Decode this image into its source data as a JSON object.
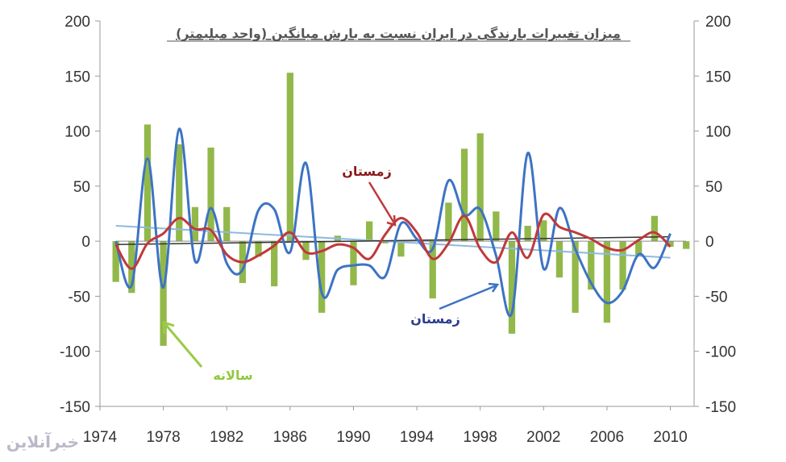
{
  "chart_data": {
    "type": "bar",
    "title": "میزان تغییرات بارندگی در ایران نسبت به بارش میانگین (واحد میلیمتر)",
    "xlabel": "",
    "ylabel": "",
    "ylim": [
      -150,
      200
    ],
    "yticks": [
      "200",
      "150",
      "100",
      "50",
      "0",
      "-50",
      "-100",
      "-150"
    ],
    "ytick_values": [
      200,
      150,
      100,
      50,
      0,
      -50,
      -100,
      -150
    ],
    "xticks": [
      "1974",
      "1978",
      "1982",
      "1986",
      "1990",
      "1994",
      "1998",
      "2002",
      "2006",
      "2010"
    ],
    "xtick_values": [
      1974,
      1978,
      1982,
      1986,
      1990,
      1994,
      1998,
      2002,
      2006,
      2010
    ],
    "xlim": [
      1974,
      2011.5
    ],
    "grid": false,
    "dual_y_axis": true,
    "colors": {
      "bars": "#92b84a",
      "annual_line": "#3d73c4",
      "winter_line": "#c0393b",
      "trend_annual": "#8db9e0",
      "trend_winter": "#333333"
    },
    "series": [
      {
        "name": "سالانه",
        "type": "bar",
        "x": [
          1975,
          1976,
          1977,
          1978,
          1979,
          1980,
          1981,
          1982,
          1983,
          1984,
          1985,
          1986,
          1987,
          1988,
          1989,
          1990,
          1991,
          1992,
          1993,
          1994,
          1995,
          1996,
          1997,
          1998,
          1999,
          2000,
          2001,
          2002,
          2003,
          2004,
          2005,
          2006,
          2007,
          2008,
          2009,
          2010,
          2011
        ],
        "values": [
          -37,
          -47,
          106,
          -95,
          88,
          31,
          85,
          31,
          -38,
          -14,
          -41,
          153,
          -17,
          -65,
          5,
          -40,
          18,
          -2,
          -14,
          0,
          -52,
          35,
          84,
          98,
          27,
          -84,
          14,
          19,
          -33,
          -65,
          -44,
          -74,
          -44,
          -13,
          23,
          -5,
          -7
        ]
      },
      {
        "name": "زمستان",
        "type": "line",
        "x": [
          1975,
          1976,
          1977,
          1978,
          1979,
          1980,
          1981,
          1982,
          1983,
          1984,
          1985,
          1986,
          1987,
          1988,
          1989,
          1990,
          1991,
          1992,
          1993,
          1994,
          1995,
          1996,
          1997,
          1998,
          1999,
          2000,
          2001,
          2002,
          2003,
          2004,
          2005,
          2006,
          2007,
          2008,
          2009,
          2010
        ],
        "values": [
          0,
          -40,
          75,
          -42,
          102,
          -18,
          30,
          -20,
          -26,
          28,
          29,
          -10,
          71,
          -47,
          -26,
          -22,
          -22,
          -32,
          16,
          2,
          -7,
          55,
          24,
          29,
          -13,
          -65,
          80,
          -25,
          30,
          -7,
          -38,
          -56,
          -45,
          -12,
          -24,
          7
        ]
      },
      {
        "name": "زمستان",
        "type": "line",
        "x": [
          1975,
          1976,
          1977,
          1978,
          1979,
          1980,
          1981,
          1982,
          1983,
          1984,
          1985,
          1986,
          1987,
          1988,
          1989,
          1990,
          1991,
          1992,
          1993,
          1994,
          1995,
          1996,
          1997,
          1998,
          1999,
          2000,
          2001,
          2002,
          2003,
          2004,
          2005,
          2006,
          2007,
          2008,
          2009,
          2010
        ],
        "values": [
          -3,
          -25,
          -2,
          7,
          21,
          11,
          10,
          -12,
          -19,
          -13,
          -4,
          8,
          -10,
          -9,
          -3,
          -6,
          -16,
          6,
          21,
          8,
          -16,
          -2,
          23,
          -7,
          -19,
          8,
          -15,
          24,
          13,
          8,
          2,
          -6,
          -8,
          1,
          8,
          -5
        ]
      }
    ],
    "trendlines": [
      {
        "name": "annual-trend",
        "from": [
          1975,
          14
        ],
        "to": [
          2010,
          -15
        ]
      },
      {
        "name": "winter-trend",
        "from": [
          1975,
          -3
        ],
        "to": [
          2010,
          4
        ]
      }
    ],
    "annotations": [
      {
        "text": "زمستان",
        "color": "#8b1a1a",
        "anchor_series": "winter-red"
      },
      {
        "text": "زمستان",
        "color": "#2a3b8f",
        "anchor_series": "annual-blue"
      },
      {
        "text": "سالانه",
        "color": "#92c83e",
        "anchor_series": "bars"
      }
    ]
  },
  "watermark": "خبرآنلاین"
}
